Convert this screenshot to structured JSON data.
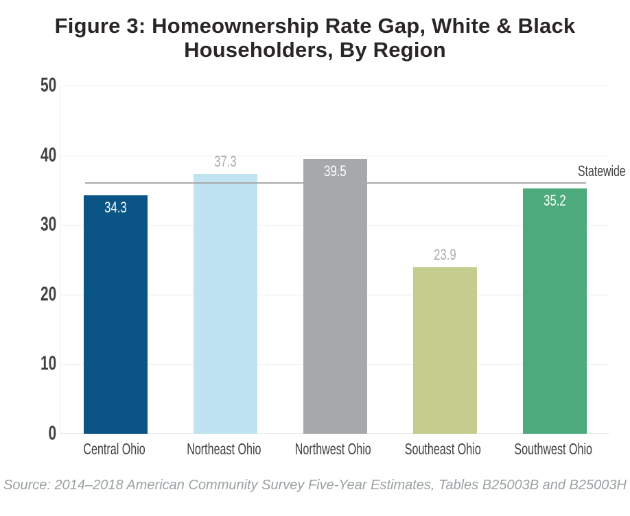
{
  "figure": {
    "title_lines": [
      "Figure 3: Homeownership Rate Gap, White & Black",
      "Householders, By Region"
    ],
    "source_note": "Source: 2014–2018 American Community Survey Five-Year Estimates, Tables B25003B and B25003H"
  },
  "chart_data": {
    "type": "bar",
    "title": "Figure 3: Homeownership Rate Gap, White & Black Householders, By Region",
    "categories": [
      "Central Ohio",
      "Northeast Ohio",
      "Northwest Ohio",
      "Southeast Ohio",
      "Southwest Ohio"
    ],
    "values": [
      34.3,
      37.3,
      39.5,
      23.9,
      35.2
    ],
    "bar_colors": [
      "#0a5585",
      "#bfe3f1",
      "#a6a9ab",
      "#c4cd8d",
      "#4caa7d"
    ],
    "value_label_placement": [
      "inside",
      "above",
      "inside",
      "above",
      "inside"
    ],
    "xlabel": "",
    "ylabel": "",
    "ylim": [
      0,
      50
    ],
    "yticks": [
      0,
      10,
      20,
      30,
      40,
      50
    ],
    "grid": true,
    "legend": "none",
    "reference_line": {
      "label": "Statewide",
      "value": 36.0,
      "color": "#a8aaac"
    },
    "source_note": "Source: 2014–2018 American Community Survey Five-Year Estimates, Tables B25003B and B25003H",
    "colors": {
      "label_inside": "#ffffff",
      "label_above": "#a8abac",
      "axis_text": "#414042",
      "gridline": "#eaebec",
      "title_text": "#2a2627",
      "source_text": "#9aa0a3"
    }
  }
}
